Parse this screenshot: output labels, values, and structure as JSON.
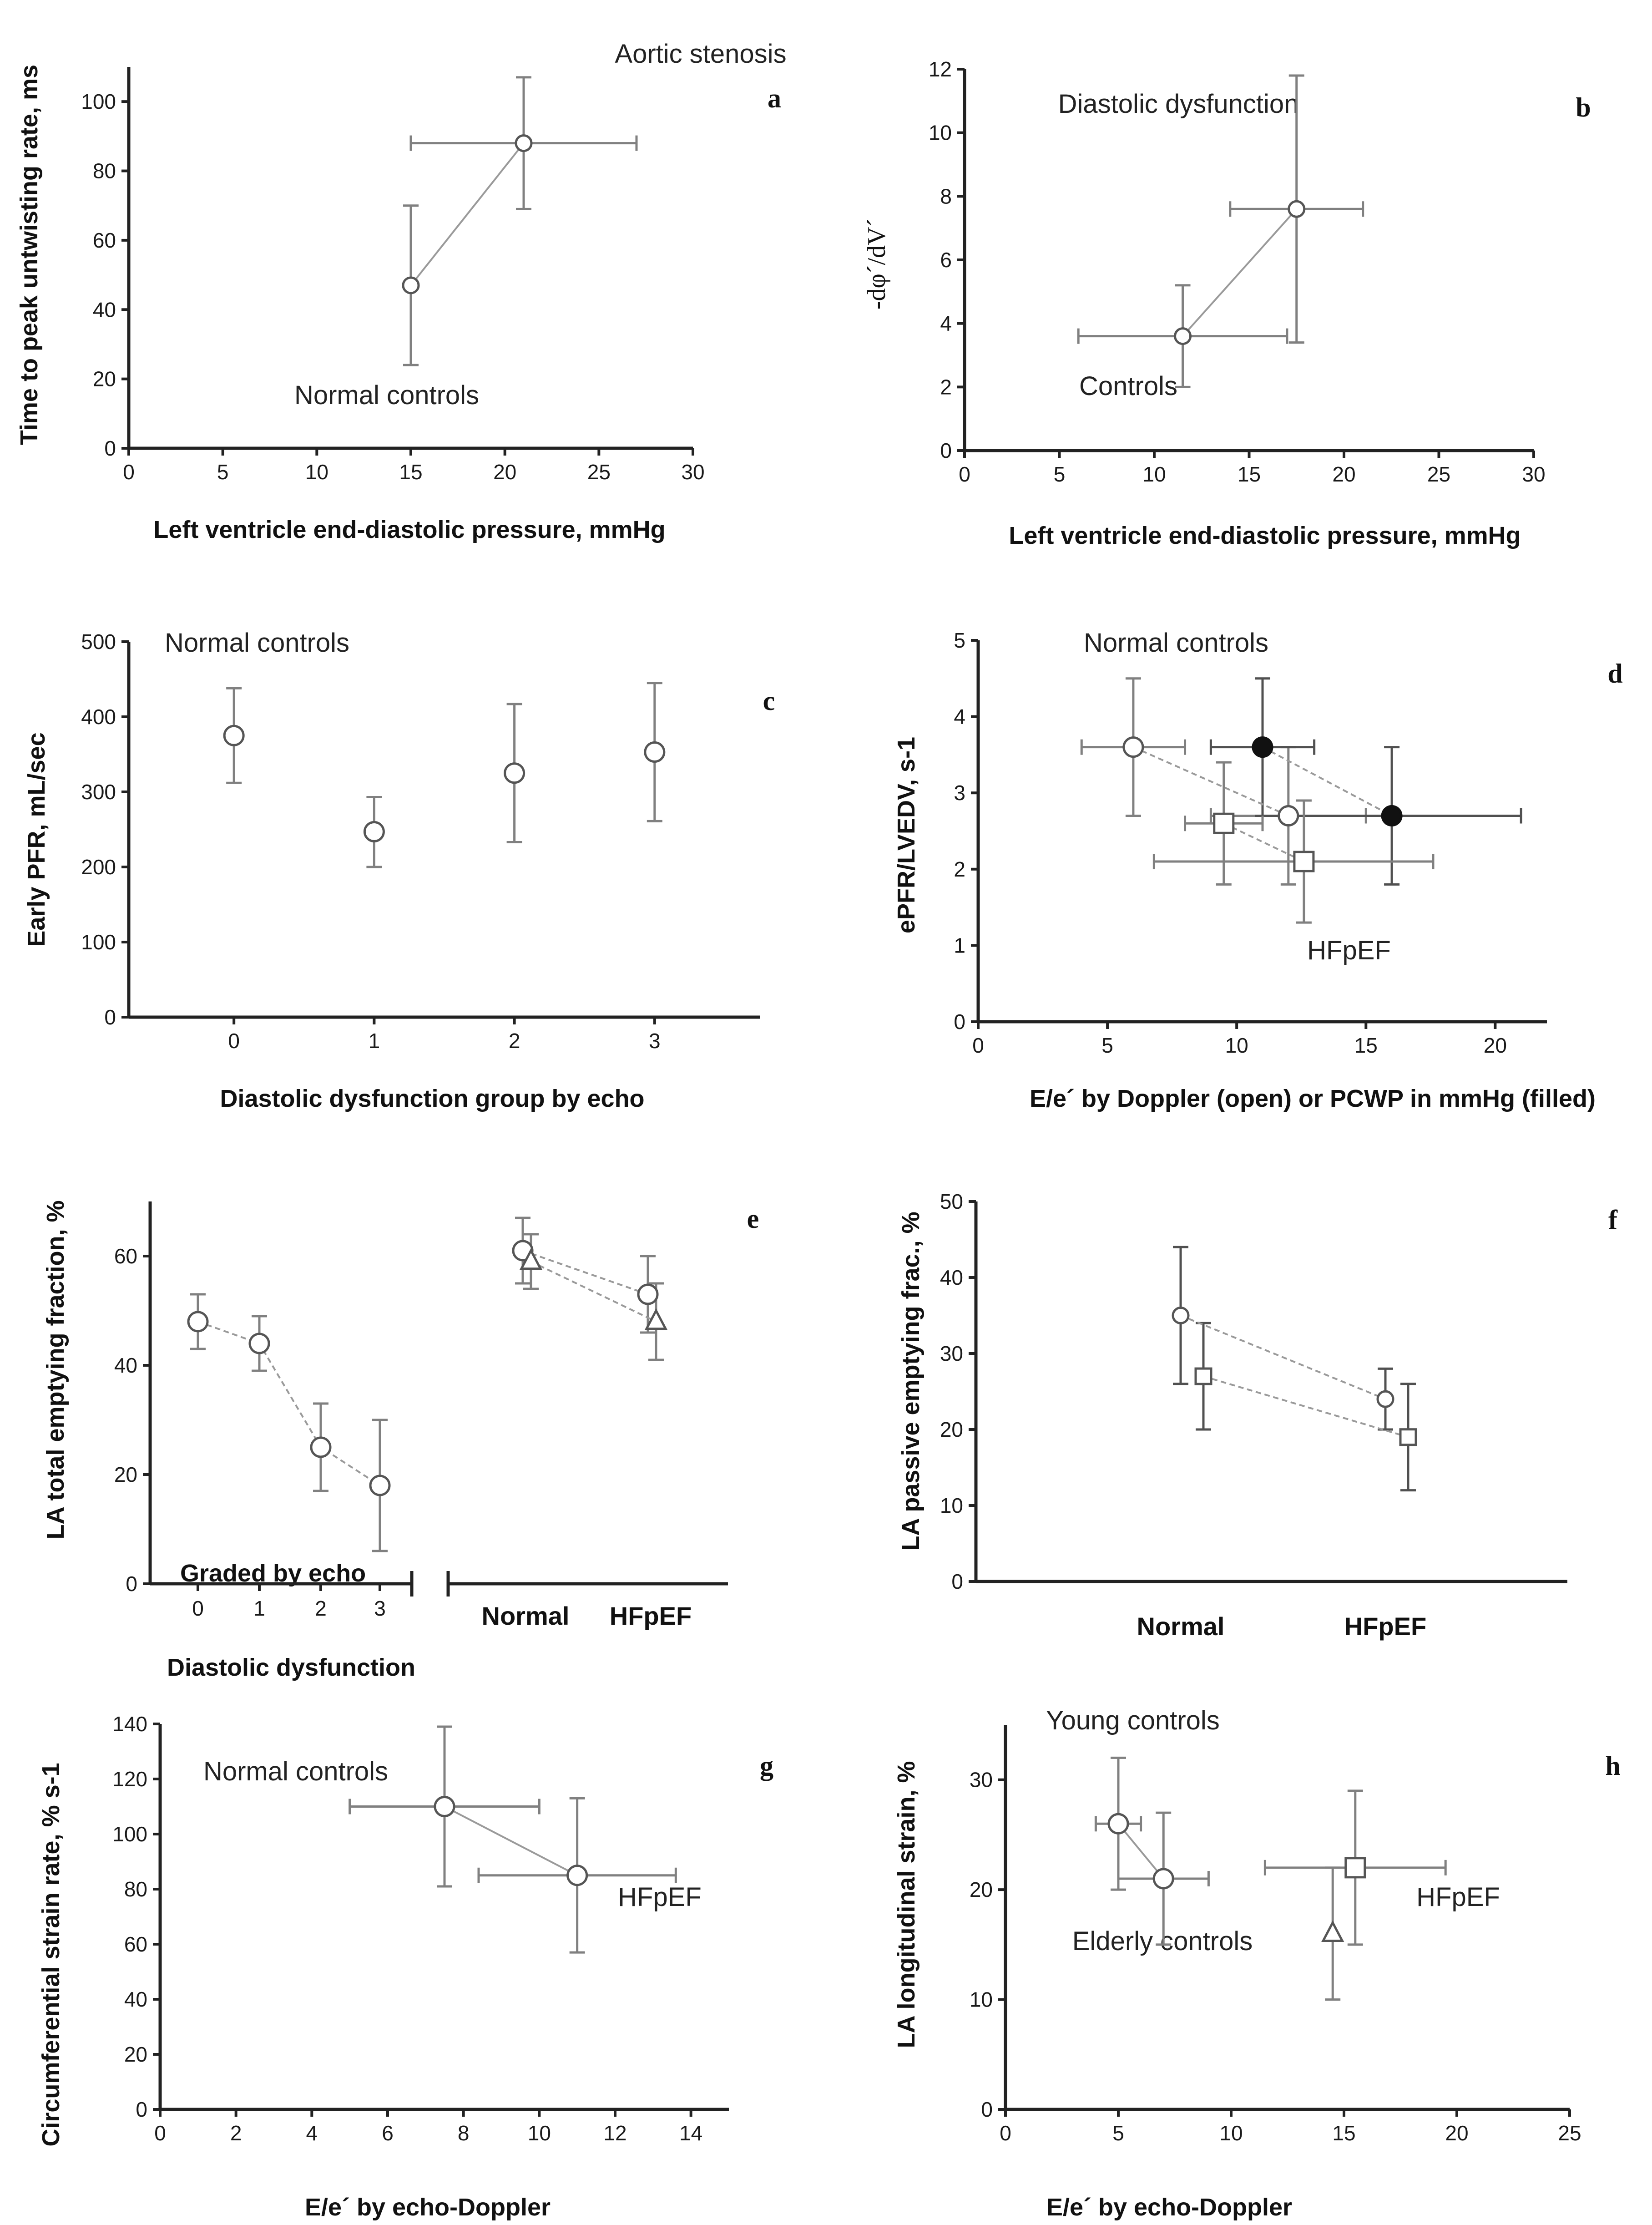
{
  "chart_data": [
    {
      "id": "a",
      "panel_label": "a",
      "type": "scatter",
      "xlabel": "Left ventricle end-diastolic pressure, mmHg",
      "ylabel": "Time to peak untwisting rate, ms",
      "xlim": [
        0,
        30
      ],
      "ylim": [
        0,
        110
      ],
      "xticks": [
        0,
        5,
        10,
        15,
        20,
        25,
        30
      ],
      "yticks": [
        0,
        20,
        40,
        60,
        80,
        100
      ],
      "annotations": [
        "Aortic stenosis",
        "Normal controls"
      ],
      "series": [
        {
          "marker": "circle",
          "filled": false,
          "connect": true,
          "points": [
            {
              "x": 15,
              "y": 47,
              "ylo": 24,
              "yhi": 70
            },
            {
              "x": 21,
              "y": 88,
              "ylo": 69,
              "yhi": 107,
              "xlo": 15,
              "xhi": 27
            }
          ]
        }
      ]
    },
    {
      "id": "b",
      "panel_label": "b",
      "type": "scatter",
      "xlabel": "Left ventricle end-diastolic pressure, mmHg",
      "ylabel": "-dφ´/dV´",
      "xlim": [
        0,
        30
      ],
      "ylim": [
        0,
        12
      ],
      "xticks": [
        0,
        5,
        10,
        15,
        20,
        25,
        30
      ],
      "yticks": [
        0,
        2,
        4,
        6,
        8,
        10,
        12
      ],
      "annotations": [
        "Diastolic dysfunction",
        "Controls"
      ],
      "series": [
        {
          "marker": "circle",
          "filled": false,
          "connect": true,
          "points": [
            {
              "x": 11.5,
              "y": 3.6,
              "ylo": 2.0,
              "yhi": 5.2,
              "xlo": 6.0,
              "xhi": 17.0
            },
            {
              "x": 17.5,
              "y": 7.6,
              "ylo": 3.4,
              "yhi": 11.8,
              "xlo": 14.0,
              "xhi": 21.0
            }
          ]
        }
      ]
    },
    {
      "id": "c",
      "panel_label": "c",
      "type": "scatter",
      "xlabel": "Diastolic dysfunction group by echo",
      "ylabel": "Early PFR, mL/sec",
      "xlim": [
        -0.75,
        3.75
      ],
      "ylim": [
        0,
        500
      ],
      "xticks": [
        0,
        1,
        2,
        3
      ],
      "yticks": [
        0,
        100,
        200,
        300,
        400,
        500
      ],
      "annotations": [
        "Normal controls"
      ],
      "series": [
        {
          "marker": "circle",
          "filled": false,
          "connect": false,
          "points": [
            {
              "x": 0,
              "y": 375,
              "ylo": 312,
              "yhi": 438
            },
            {
              "x": 1,
              "y": 247,
              "ylo": 200,
              "yhi": 293
            },
            {
              "x": 2,
              "y": 325,
              "ylo": 233,
              "yhi": 417
            },
            {
              "x": 3,
              "y": 353,
              "ylo": 261,
              "yhi": 445
            }
          ]
        }
      ]
    },
    {
      "id": "d",
      "panel_label": "d",
      "type": "scatter",
      "xlabel": "E/e´ by Doppler (open) or PCWP in mmHg (filled)",
      "ylabel": "ePFR/LVEDV, s-1",
      "xlim": [
        0,
        22
      ],
      "ylim": [
        0,
        5
      ],
      "xticks": [
        0,
        5,
        10,
        15,
        20
      ],
      "yticks": [
        0,
        1,
        2,
        3,
        4,
        5
      ],
      "annotations": [
        "Normal controls",
        "HFpEF"
      ],
      "series": [
        {
          "marker": "circle",
          "filled": false,
          "connect": true,
          "points": [
            {
              "x": 6.0,
              "y": 3.6,
              "ylo": 2.7,
              "yhi": 4.5,
              "xlo": 4.0,
              "xhi": 8.0
            },
            {
              "x": 12.0,
              "y": 2.7,
              "ylo": 1.8,
              "yhi": 3.6,
              "xlo": 9.0,
              "xhi": 15.0
            }
          ]
        },
        {
          "marker": "circle",
          "filled": true,
          "connect": true,
          "points": [
            {
              "x": 11.0,
              "y": 3.6,
              "ylo": 2.7,
              "yhi": 4.5,
              "xlo": 9.0,
              "xhi": 13.0
            },
            {
              "x": 16.0,
              "y": 2.7,
              "ylo": 1.8,
              "yhi": 3.6,
              "xlo": 11.0,
              "xhi": 21.0
            }
          ]
        },
        {
          "marker": "square",
          "filled": false,
          "connect": true,
          "points": [
            {
              "x": 9.5,
              "y": 2.6,
              "ylo": 1.8,
              "yhi": 3.4,
              "xlo": 8.0,
              "xhi": 11.0
            },
            {
              "x": 12.6,
              "y": 2.1,
              "ylo": 1.3,
              "yhi": 2.9,
              "xlo": 6.8,
              "xhi": 17.6
            }
          ]
        }
      ]
    },
    {
      "id": "e",
      "panel_label": "e",
      "type": "scatter",
      "xlabel": "Diastolic dysfunction",
      "ylabel": "LA total emptying fraction, %",
      "ylim": [
        0,
        70
      ],
      "yticks": [
        0,
        20,
        40,
        60
      ],
      "left_categories": [
        "0",
        "1",
        "2",
        "3"
      ],
      "right_categories": [
        "Normal",
        "HFpEF"
      ],
      "annotations": [
        "Graded by echo"
      ],
      "series": [
        {
          "group": "graded",
          "marker": "circle",
          "filled": false,
          "connect": true,
          "points": [
            {
              "x": 0,
              "y": 48,
              "ylo": 43,
              "yhi": 53
            },
            {
              "x": 1,
              "y": 44,
              "ylo": 39,
              "yhi": 49
            },
            {
              "x": 2,
              "y": 25,
              "ylo": 17,
              "yhi": 33
            },
            {
              "x": 3,
              "y": 18,
              "ylo": 6,
              "yhi": 30
            }
          ]
        },
        {
          "group": "split",
          "marker": "circle",
          "filled": false,
          "connect": true,
          "points": [
            {
              "x": 0,
              "y": 61,
              "ylo": 55,
              "yhi": 67
            },
            {
              "x": 1,
              "y": 53,
              "ylo": 46,
              "yhi": 60
            }
          ]
        },
        {
          "group": "split",
          "marker": "triangle",
          "filled": false,
          "connect": true,
          "points": [
            {
              "x": 0,
              "y": 59,
              "ylo": 54,
              "yhi": 64
            },
            {
              "x": 1,
              "y": 48,
              "ylo": 41,
              "yhi": 55
            }
          ]
        }
      ]
    },
    {
      "id": "f",
      "panel_label": "f",
      "type": "scatter",
      "xlabel": "",
      "ylabel": "LA passive emptying frac., %",
      "ylim": [
        0,
        50
      ],
      "yticks": [
        0,
        10,
        20,
        30,
        40,
        50
      ],
      "categories": [
        "Normal",
        "HFpEF"
      ],
      "annotations": [],
      "series": [
        {
          "marker": "circle",
          "filled": false,
          "connect": true,
          "points": [
            {
              "x": 0,
              "y": 35,
              "ylo": 26,
              "yhi": 44
            },
            {
              "x": 1,
              "y": 24,
              "ylo": 20,
              "yhi": 28
            }
          ]
        },
        {
          "marker": "square",
          "filled": false,
          "connect": true,
          "points": [
            {
              "x": 0,
              "y": 27,
              "ylo": 20,
              "yhi": 34
            },
            {
              "x": 1,
              "y": 19,
              "ylo": 12,
              "yhi": 26
            }
          ]
        }
      ]
    },
    {
      "id": "g",
      "panel_label": "g",
      "type": "scatter",
      "xlabel": "E/e´ by echo-Doppler",
      "ylabel": "Circumferential strain rate, % s-1",
      "xlim": [
        0,
        15
      ],
      "ylim": [
        0,
        140
      ],
      "xticks": [
        0,
        2,
        4,
        6,
        8,
        10,
        12,
        14
      ],
      "yticks": [
        0,
        20,
        40,
        60,
        80,
        100,
        120,
        140
      ],
      "annotations": [
        "Normal controls",
        "HFpEF"
      ],
      "series": [
        {
          "marker": "circle",
          "filled": false,
          "connect": true,
          "points": [
            {
              "x": 7.5,
              "y": 110,
              "ylo": 81,
              "yhi": 139,
              "xlo": 5.0,
              "xhi": 10.0
            },
            {
              "x": 11.0,
              "y": 85,
              "ylo": 57,
              "yhi": 113,
              "xlo": 8.4,
              "xhi": 13.6
            }
          ]
        }
      ]
    },
    {
      "id": "h",
      "panel_label": "h",
      "type": "scatter",
      "xlabel": "E/e´ by echo-Doppler",
      "ylabel": "LA longitudinal strain, %",
      "xlim": [
        0,
        25
      ],
      "ylim": [
        0,
        35
      ],
      "xticks": [
        0,
        5,
        10,
        15,
        20,
        25
      ],
      "yticks": [
        0,
        10,
        20,
        30
      ],
      "annotations": [
        "Young controls",
        "Elderly controls",
        "HFpEF"
      ],
      "series": [
        {
          "marker": "circle",
          "filled": false,
          "connect": true,
          "points": [
            {
              "x": 5.0,
              "y": 26,
              "ylo": 20,
              "yhi": 32,
              "xlo": 4.0,
              "xhi": 6.0
            },
            {
              "x": 7.0,
              "y": 21,
              "ylo": 15,
              "yhi": 27,
              "xlo": 5.0,
              "xhi": 9.0
            }
          ]
        },
        {
          "marker": "square",
          "filled": false,
          "connect": false,
          "points": [
            {
              "x": 15.5,
              "y": 22,
              "ylo": 15,
              "yhi": 29,
              "xlo": 11.5,
              "xhi": 19.5
            }
          ]
        },
        {
          "marker": "triangle",
          "filled": false,
          "connect": false,
          "points": [
            {
              "x": 14.5,
              "y": 16,
              "ylo": 10,
              "yhi": 22
            }
          ]
        }
      ]
    }
  ]
}
